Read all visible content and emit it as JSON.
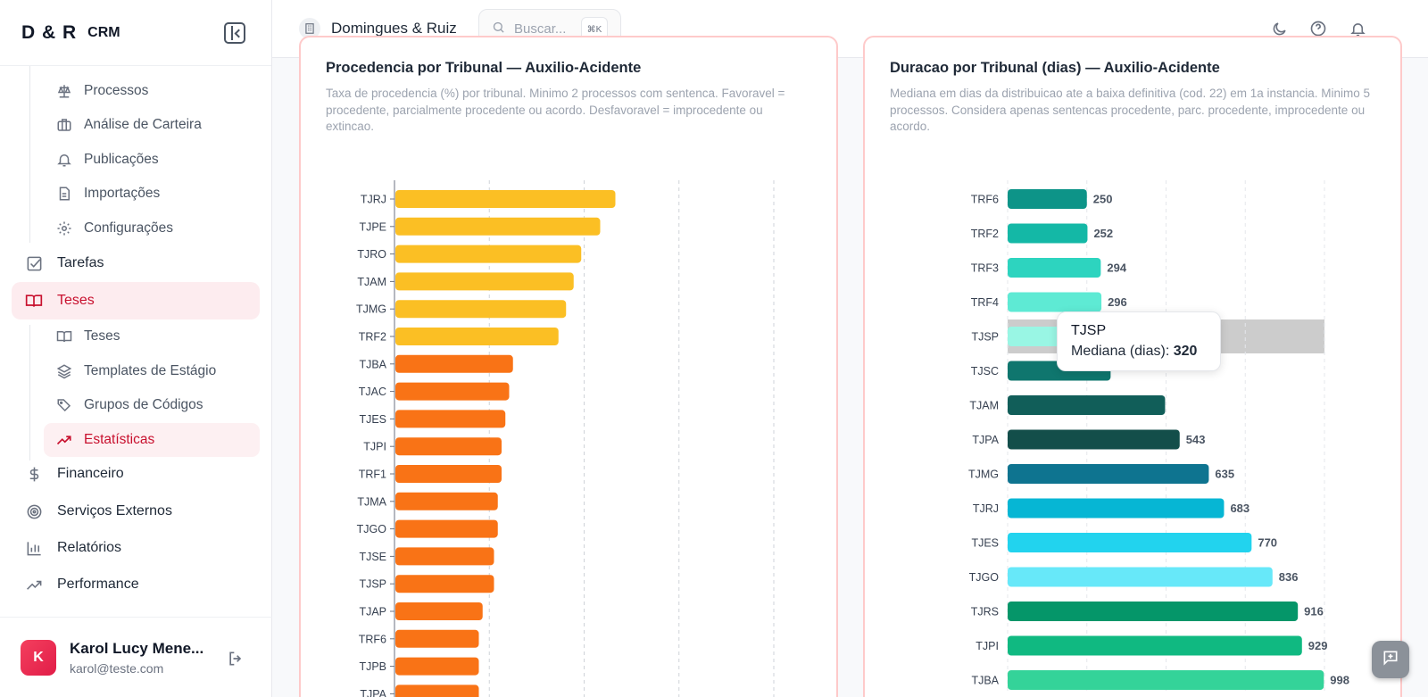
{
  "brand": {
    "logo": "D & R",
    "product": "CRM"
  },
  "sidebar": {
    "items": [
      {
        "id": "processos",
        "label": "Processos",
        "icon": "scale-icon",
        "level": "sub"
      },
      {
        "id": "analise",
        "label": "Análise de Carteira",
        "icon": "briefcase-icon",
        "level": "sub"
      },
      {
        "id": "publicacoes",
        "label": "Publicações",
        "icon": "bell-icon",
        "level": "sub"
      },
      {
        "id": "importacoes",
        "label": "Importações",
        "icon": "file-icon",
        "level": "sub"
      },
      {
        "id": "configuracoes",
        "label": "Configurações",
        "icon": "gear-icon",
        "level": "sub"
      },
      {
        "id": "tarefas",
        "label": "Tarefas",
        "icon": "checkbox-icon",
        "level": "top"
      },
      {
        "id": "teses",
        "label": "Teses",
        "icon": "book-icon",
        "level": "top",
        "active": true
      },
      {
        "id": "teses-sub",
        "label": "Teses",
        "icon": "book-icon",
        "level": "sub"
      },
      {
        "id": "templates",
        "label": "Templates de Estágio",
        "icon": "layers-icon",
        "level": "sub"
      },
      {
        "id": "grupos",
        "label": "Grupos de Códigos",
        "icon": "tags-icon",
        "level": "sub"
      },
      {
        "id": "estatisticas",
        "label": "Estatísticas",
        "icon": "trending-up-icon",
        "level": "sub",
        "active": true
      },
      {
        "id": "financeiro",
        "label": "Financeiro",
        "icon": "dollar-icon",
        "level": "top"
      },
      {
        "id": "servicos",
        "label": "Serviços Externos",
        "icon": "radar-icon",
        "level": "top"
      },
      {
        "id": "relatorios",
        "label": "Relatórios",
        "icon": "bar-chart-icon",
        "level": "top"
      },
      {
        "id": "performance",
        "label": "Performance",
        "icon": "trending-up-icon",
        "level": "top"
      }
    ]
  },
  "user": {
    "initial": "K",
    "name": "Karol Lucy Mene...",
    "email": "karol@teste.com"
  },
  "header": {
    "company": "Domingues & Ruiz",
    "search_placeholder": "Buscar...",
    "search_shortcut": "⌘K"
  },
  "accent_color": "#c8102e",
  "chart_data": [
    {
      "type": "bar",
      "orientation": "horizontal",
      "title": "Procedencia por Tribunal — Auxilio-Acidente",
      "description": "Taxa de procedencia (%) por tribunal. Minimo 2 processos com sentenca. Favoravel = procedente, parcialmente procedente ou acordo. Desfavoravel = improcedente ou extincao.",
      "categories": [
        "TJRJ",
        "TJPE",
        "TJRO",
        "TJAM",
        "TJMG",
        "TRF2",
        "TJBA",
        "TJAC",
        "TJES",
        "TJPI",
        "TRF1",
        "TJMA",
        "TJGO",
        "TJSE",
        "TJSP",
        "TJAP",
        "TRF6",
        "TJPB",
        "TJPA"
      ],
      "values": [
        58,
        54,
        49,
        47,
        45,
        43,
        31,
        30,
        29,
        28,
        28,
        27,
        27,
        26,
        26,
        23,
        22,
        22,
        22
      ],
      "colors": [
        "#fbbf24",
        "#fbbf24",
        "#fbbf24",
        "#fbbf24",
        "#fbbf24",
        "#fbbf24",
        "#f97316",
        "#f97316",
        "#f97316",
        "#f97316",
        "#f97316",
        "#f97316",
        "#f97316",
        "#f97316",
        "#f97316",
        "#f97316",
        "#f97316",
        "#f97316",
        "#f97316"
      ],
      "xlim": [
        0,
        100
      ],
      "grid": "vertical-dashed"
    },
    {
      "type": "bar",
      "orientation": "horizontal",
      "title": "Duracao por Tribunal (dias) — Auxilio-Acidente",
      "description": "Mediana em dias da distribuicao ate a baixa definitiva (cod. 22) em 1a instancia. Minimo 5 processos. Considera apenas sentencas procedente, parc. procedente, improcedente ou acordo.",
      "categories": [
        "TRF6",
        "TRF2",
        "TRF3",
        "TRF4",
        "TJSP",
        "TJSC",
        "TJAM",
        "TJPA",
        "TJMG",
        "TJRJ",
        "TJES",
        "TJGO",
        "TJRS",
        "TJPI",
        "TJBA"
      ],
      "values": [
        250,
        252,
        294,
        296,
        320,
        325,
        497,
        543,
        635,
        683,
        770,
        836,
        916,
        929,
        998
      ],
      "value_labels": [
        "250",
        "252",
        "294",
        "296",
        "320",
        "",
        "",
        "543",
        "635",
        "683",
        "770",
        "836",
        "916",
        "929",
        "998"
      ],
      "colors": [
        "#0d9488",
        "#14b8a6",
        "#2dd4bf",
        "#5eead4",
        "#99f6e4",
        "#0f766e",
        "#115e59",
        "#134e4a",
        "#0e7490",
        "#06b6d4",
        "#22d3ee",
        "#67e8f9",
        "#059669",
        "#10b981",
        "#34d399"
      ],
      "xlim": [
        0,
        1000
      ],
      "xticks": [
        "0",
        "250",
        "500",
        "750",
        "1000"
      ],
      "grid": "vertical-dashed",
      "highlight_category": "TJSP",
      "tooltip": {
        "title": "TJSP",
        "label": "Mediana (dias):",
        "value": "320"
      }
    }
  ]
}
